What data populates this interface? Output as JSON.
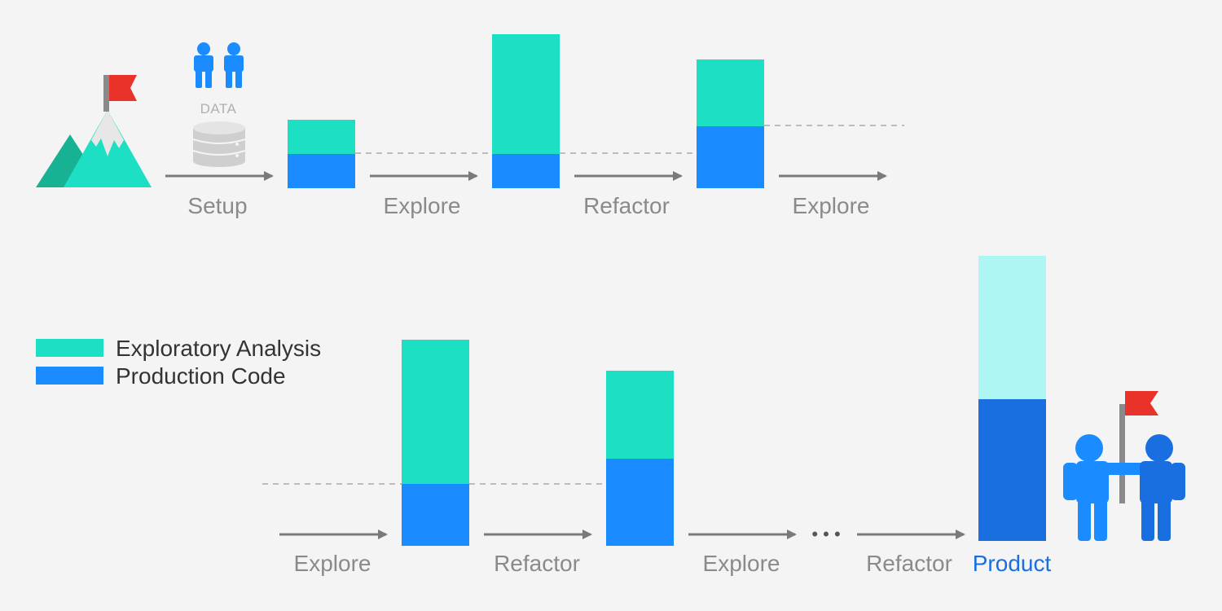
{
  "colors": {
    "background": "#f4f4f4",
    "exploratory": "#1ddfc3",
    "production": "#1a8cff",
    "final_exploratory": "#adf6f4",
    "final_production": "#1a6fe0",
    "arrow": "#7a7a7a",
    "dashed_line": "#bdbdbd",
    "flag": "#e8322a",
    "people": "#1a8cff",
    "mountain_dark": "#17b293",
    "mountain_light": "#1ddfc3",
    "mountain_snow": "#e7e7e7",
    "database": "#cfcfcf"
  },
  "icons": {
    "start_mountain": "mountain-flag-icon",
    "team": "people-icon",
    "database": "database-icon",
    "finish_team": "team-flag-icon"
  },
  "data_label": "DATA",
  "top_row": {
    "steps": [
      "Setup",
      "Explore",
      "Refactor",
      "Explore"
    ]
  },
  "bottom_row": {
    "steps": [
      "Explore",
      "Refactor",
      "Explore",
      "Refactor"
    ],
    "ellipsis": "• • •",
    "final_label": "Product"
  },
  "legend": {
    "exploratory": "Exploratory Analysis",
    "production": "Production Code"
  }
}
